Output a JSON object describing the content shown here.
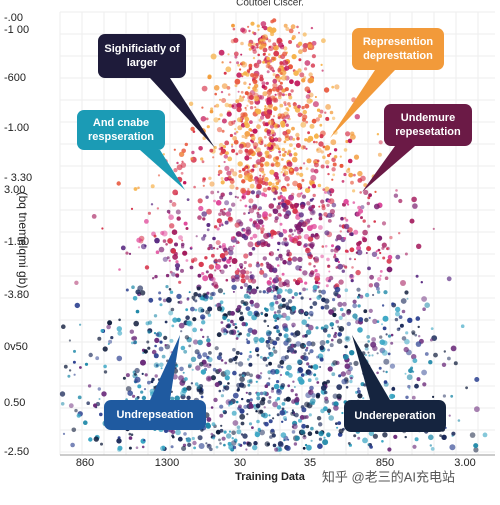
{
  "title": "Coutoel Clscer.",
  "y_axis": {
    "label": "(bq tnemelqmi gb)",
    "tick_labels": [
      "-.00",
      "-1 00",
      "-600",
      "-1.00",
      "- 3.30",
      "3.00",
      "-1.50",
      "-3.80",
      "0v50",
      "0.50",
      "-2.50"
    ]
  },
  "x_axis": {
    "label": "Training Data",
    "tick_labels": [
      "860",
      "1300",
      "30",
      "35",
      "850",
      "3.00"
    ]
  },
  "callouts": [
    {
      "text": "Sighificiatly of larger"
    },
    {
      "text": "Represention depresttation"
    },
    {
      "text": "And cnabe respseration"
    },
    {
      "text": "Undemure repesetation"
    },
    {
      "text": "Undrepseation"
    },
    {
      "text": "Undereperation"
    }
  ],
  "watermark": "知乎 @老三的AI充电站"
}
